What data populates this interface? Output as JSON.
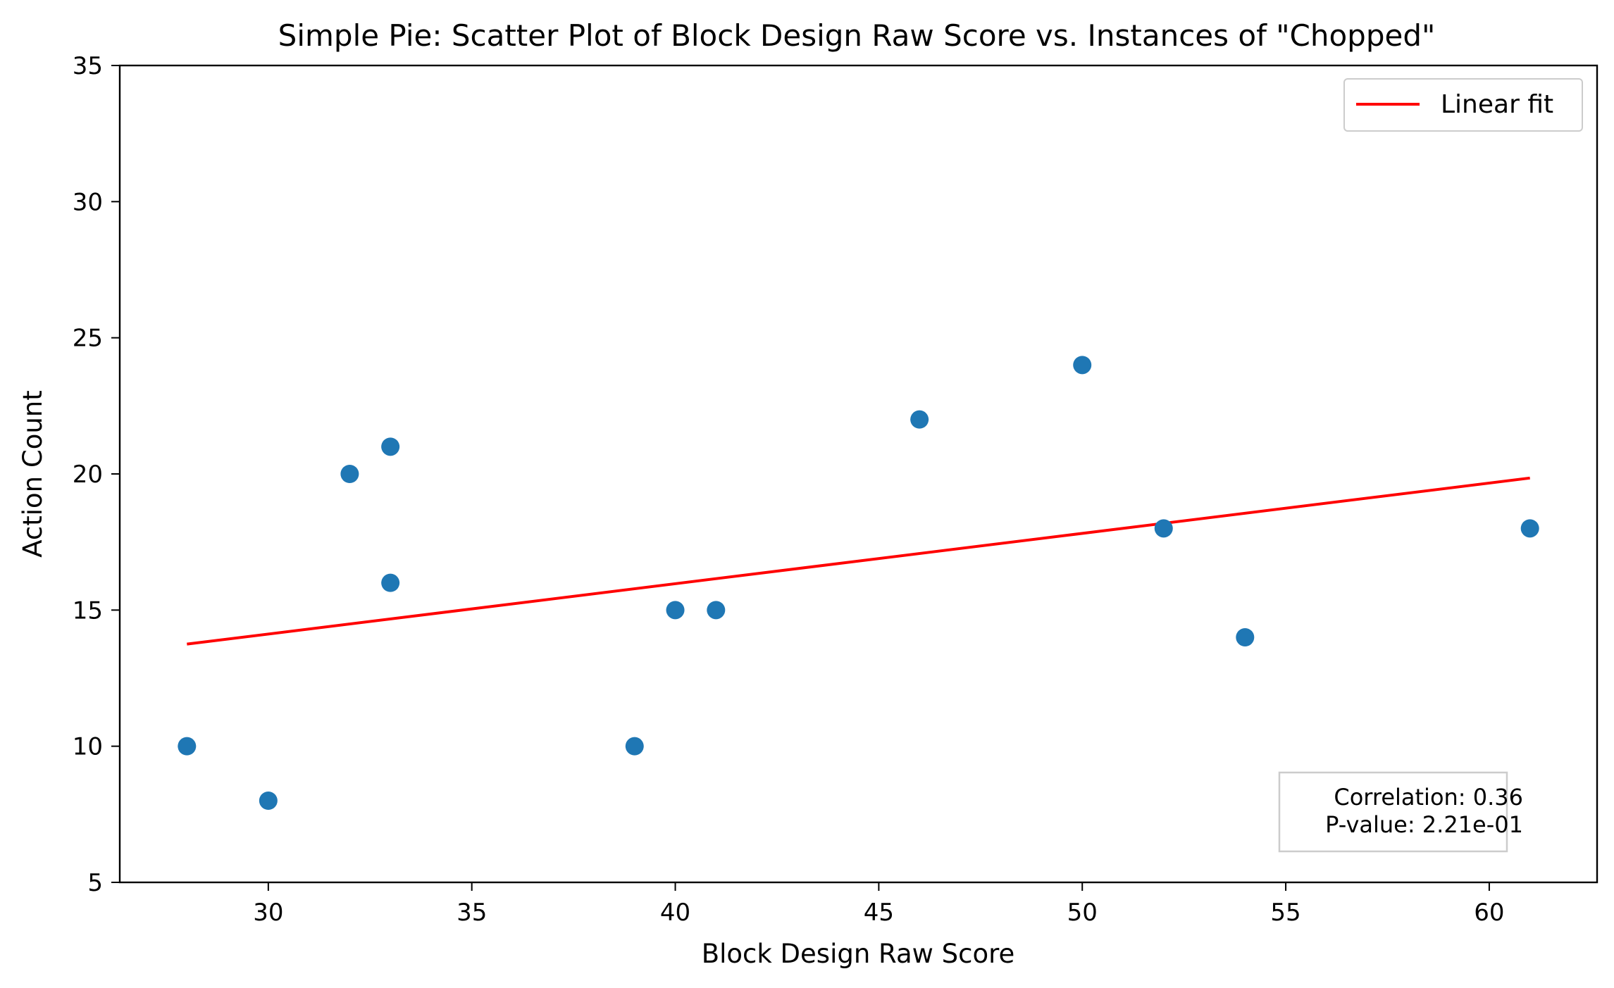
{
  "chart_data": {
    "type": "scatter",
    "title": "Simple Pie: Scatter Plot of Block Design Raw Score vs. Instances of \"Chopped\"",
    "xlabel": "Block Design Raw Score",
    "ylabel": "Action Count",
    "xlim": [
      26.35,
      62.65
    ],
    "ylim": [
      5,
      35
    ],
    "xticks": [
      30,
      35,
      40,
      45,
      50,
      55,
      60
    ],
    "yticks": [
      5,
      10,
      15,
      20,
      25,
      30,
      35
    ],
    "grid": false,
    "legend_position": "top-right",
    "points": [
      {
        "x": 28,
        "y": 10
      },
      {
        "x": 30,
        "y": 8
      },
      {
        "x": 32,
        "y": 20
      },
      {
        "x": 33,
        "y": 21
      },
      {
        "x": 33,
        "y": 16
      },
      {
        "x": 39,
        "y": 10
      },
      {
        "x": 40,
        "y": 15
      },
      {
        "x": 41,
        "y": 15
      },
      {
        "x": 46,
        "y": 22
      },
      {
        "x": 50,
        "y": 24
      },
      {
        "x": 52,
        "y": 18
      },
      {
        "x": 54,
        "y": 14
      },
      {
        "x": 61,
        "y": 18
      }
    ],
    "fit_line": {
      "name": "Linear fit",
      "x": [
        28,
        61
      ],
      "y": [
        13.75,
        19.85
      ]
    },
    "annotation": {
      "correlation": "Correlation: 0.36",
      "p_value": "P-value: 2.21e-01"
    },
    "colors": {
      "points": "#1f77b4",
      "fit_line": "#ff0000",
      "axes": "#000000",
      "legend_border": "#cccccc"
    }
  }
}
